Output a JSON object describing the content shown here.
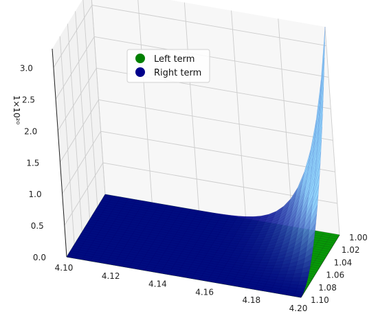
{
  "chart_data": {
    "type": "surface3d",
    "title": "",
    "xlabel": "",
    "ylabel": "",
    "zlabel": "",
    "z_multiplier": "1×10²⁰",
    "x_ticks": [
      "4.10",
      "4.12",
      "4.14",
      "4.16",
      "4.18",
      "4.20"
    ],
    "y_ticks": [
      "1.00",
      "1.02",
      "1.04",
      "1.06",
      "1.08",
      "1.10"
    ],
    "z_ticks": [
      "0.0",
      "0.5",
      "1.0",
      "1.5",
      "2.0",
      "2.5",
      "3.0"
    ],
    "xlim": [
      4.1,
      4.2
    ],
    "ylim": [
      1.0,
      1.1
    ],
    "zlim": [
      0,
      3.3
    ],
    "grid": true,
    "legend_position": "top-left",
    "series": [
      {
        "name": "Left term",
        "color": "#008000",
        "description_values": {
          "z_constant": 0.0
        }
      },
      {
        "name": "Right term",
        "color": "#00008b",
        "description_values": {
          "z_at_x_4.20_y_1.00": 3.3,
          "z_at_x_4.20_y_1.10": 0.0,
          "z_at_x_4.10": 0.0
        }
      }
    ]
  }
}
